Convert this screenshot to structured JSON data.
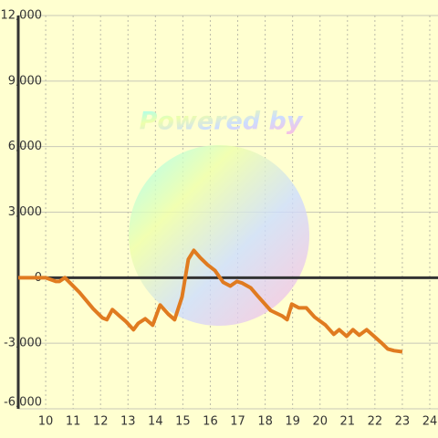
{
  "chart_data": {
    "type": "line",
    "watermark": "Powered by",
    "color": "#e07b20",
    "grid": true,
    "xlim": [
      9,
      24.3
    ],
    "xticks": [
      10,
      11,
      12,
      13,
      14,
      15,
      16,
      17,
      18,
      19,
      20,
      21,
      22,
      23,
      24
    ],
    "ylim": [
      -6000,
      12000
    ],
    "yticks": [
      {
        "value": -6000,
        "label": "-6,000"
      },
      {
        "value": -3000,
        "label": "-3,000"
      },
      0,
      {
        "value": 3000,
        "label": "3,000"
      },
      {
        "value": 6000,
        "label": "6,000"
      },
      {
        "value": 9000,
        "label": "9,000"
      },
      {
        "value": 12000,
        "label": "12,000"
      }
    ],
    "x": [
      9.0,
      10.0,
      10.37,
      10.5,
      10.7,
      11.23,
      11.73,
      12.07,
      12.23,
      12.43,
      12.7,
      12.93,
      13.2,
      13.37,
      13.63,
      13.9,
      14.17,
      14.47,
      14.7,
      14.97,
      15.2,
      15.4,
      15.63,
      15.9,
      16.17,
      16.47,
      16.73,
      16.97,
      17.17,
      17.47,
      17.73,
      18.2,
      18.63,
      18.8,
      18.97,
      19.23,
      19.5,
      19.8,
      20.2,
      20.5,
      20.7,
      20.97,
      21.2,
      21.43,
      21.7,
      21.97,
      22.23,
      22.47,
      22.7,
      23.0
    ],
    "values": [
      0,
      0,
      -170,
      -170,
      0,
      -670,
      -1420,
      -1840,
      -1920,
      -1460,
      -1760,
      -2010,
      -2380,
      -2090,
      -1880,
      -2170,
      -1250,
      -1670,
      -1920,
      -880,
      840,
      1250,
      920,
      590,
      330,
      -210,
      -380,
      -170,
      -250,
      -460,
      -840,
      -1500,
      -1760,
      -1920,
      -1210,
      -1380,
      -1380,
      -1800,
      -2170,
      -2590,
      -2380,
      -2680,
      -2380,
      -2630,
      -2380,
      -2680,
      -2970,
      -3260,
      -3340,
      -3390
    ]
  }
}
